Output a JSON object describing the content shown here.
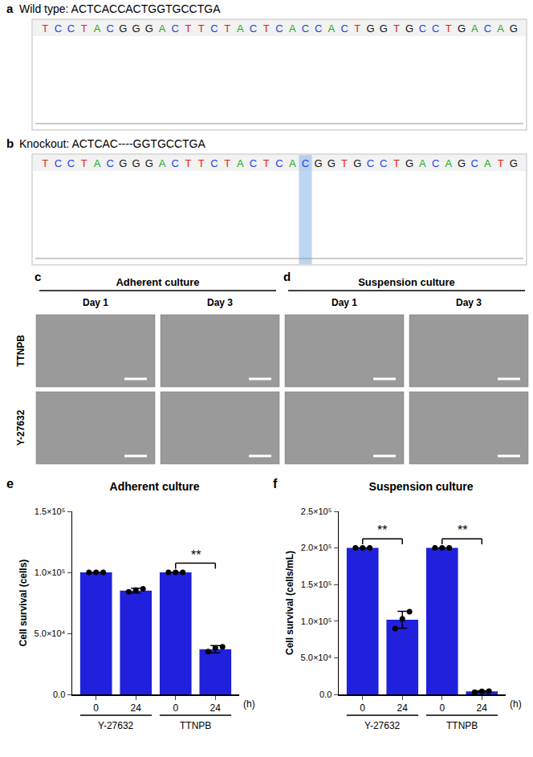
{
  "sequencing": [
    {
      "label": "a",
      "title": "Wild type: ACTCACCACTGGTGCCTGA",
      "bases": "TCCTACGGGACTTCTACTCACCACTGGTGCCTGACAG"
    },
    {
      "label": "b",
      "title": "Knockout: ACTCAC----GGTGCCTGA",
      "bases": "TCCTACGGGACTTCTACTCACGGTGCCTGACAGCATG",
      "highlighted_base": 20
    }
  ],
  "microscopy": {
    "panels": [
      {
        "label": "c",
        "title": "Adherent culture"
      },
      {
        "label": "d",
        "title": "Suspension culture"
      }
    ],
    "columns": [
      "Day 1",
      "Day 3"
    ],
    "rows": [
      "TTNPB",
      "Y-27632"
    ]
  },
  "chart_data": [
    {
      "type": "bar",
      "label": "e",
      "title": "Adherent culture",
      "ylabel": "Cell survival (cells)",
      "xlabel": "(h)",
      "categories": [
        "0",
        "24",
        "0",
        "24"
      ],
      "groups": [
        "Y-27632",
        "Y-27632",
        "TTNPB",
        "TTNPB"
      ],
      "values": [
        100000,
        85000,
        100000,
        37000
      ],
      "errors": [
        0,
        2000,
        0,
        3000
      ],
      "points": [
        [
          100000,
          100000,
          100000
        ],
        [
          84000,
          85500,
          86500
        ],
        [
          100000,
          100000,
          100000
        ],
        [
          35000,
          38000,
          39000
        ]
      ],
      "color": "#2020dd",
      "ylim": [
        0,
        150000
      ],
      "yticks": [
        {
          "value": 0,
          "label": "0.0"
        },
        {
          "value": 50000,
          "label": "5.0×10⁴"
        },
        {
          "value": 100000,
          "label": "1.0×10⁵"
        },
        {
          "value": 150000,
          "label": "1.5×10⁵"
        }
      ],
      "significance": [
        {
          "from": 2,
          "to": 3,
          "label": "**"
        }
      ]
    },
    {
      "type": "bar",
      "label": "f",
      "title": "Suspension culture",
      "ylabel": "Cell survival (cells/mL)",
      "xlabel": "(h)",
      "categories": [
        "0",
        "24",
        "0",
        "24"
      ],
      "groups": [
        "Y-27632",
        "Y-27632",
        "TTNPB",
        "TTNPB"
      ],
      "values": [
        200000,
        102000,
        200000,
        4000
      ],
      "errors": [
        0,
        11500,
        0,
        800
      ],
      "points": [
        [
          200000,
          200000,
          200000
        ],
        [
          90000,
          103000,
          113000
        ],
        [
          200000,
          200000,
          200000
        ],
        [
          3000,
          4000,
          4500
        ]
      ],
      "color": "#2020dd",
      "ylim": [
        0,
        250000
      ],
      "yticks": [
        {
          "value": 0,
          "label": "0.0"
        },
        {
          "value": 50000,
          "label": "5.0×10⁴"
        },
        {
          "value": 100000,
          "label": "1.0×10⁵"
        },
        {
          "value": 150000,
          "label": "1.5×10⁵"
        },
        {
          "value": 200000,
          "label": "2.0×10⁵"
        },
        {
          "value": 250000,
          "label": "2.5×10⁵"
        }
      ],
      "significance": [
        {
          "from": 0,
          "to": 1,
          "label": "**"
        },
        {
          "from": 2,
          "to": 3,
          "label": "**"
        }
      ]
    }
  ]
}
